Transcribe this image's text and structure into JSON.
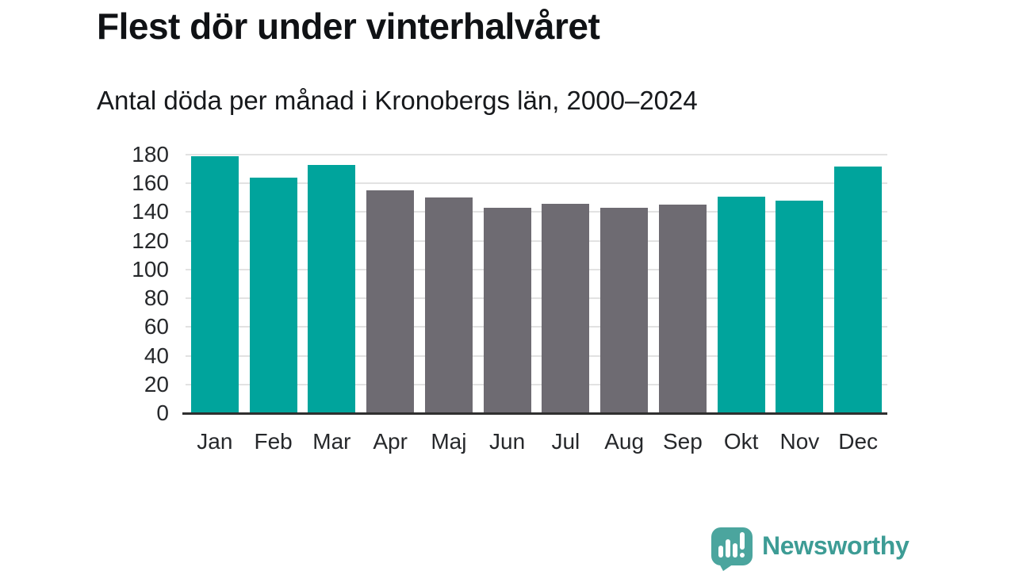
{
  "header": {
    "title": "Flest dör under vinterhalvåret",
    "subtitle": "Antal döda per månad i Kronobergs län, 2000–2024"
  },
  "chart_data": {
    "type": "bar",
    "title": "Flest dör under vinterhalvåret",
    "subtitle": "Antal döda per månad i Kronobergs län, 2000–2024",
    "categories": [
      "Jan",
      "Feb",
      "Mar",
      "Apr",
      "Maj",
      "Jun",
      "Jul",
      "Aug",
      "Sep",
      "Okt",
      "Nov",
      "Dec"
    ],
    "values": [
      179,
      164,
      173,
      155,
      150,
      143,
      146,
      143,
      145,
      151,
      148,
      172
    ],
    "highlighted": [
      true,
      true,
      true,
      false,
      false,
      false,
      false,
      false,
      false,
      true,
      true,
      true
    ],
    "xlabel": "",
    "ylabel": "",
    "ylim": [
      0,
      180
    ],
    "ytick_step": 20,
    "grid": "horizontal",
    "legend": "none",
    "colors": {
      "highlight_bar": "#00a49c",
      "muted_bar": "#6e6b72",
      "gridline": "#e2e2e2",
      "axis_line": "#2f2f2f",
      "tick_label": "#26282b"
    }
  },
  "footer": {
    "brand": "Newsworthy",
    "brand_color": "#3d9c95",
    "logo_icon": "bar-chart-speech-bubble-icon",
    "logo_color": "#4ba59e"
  }
}
